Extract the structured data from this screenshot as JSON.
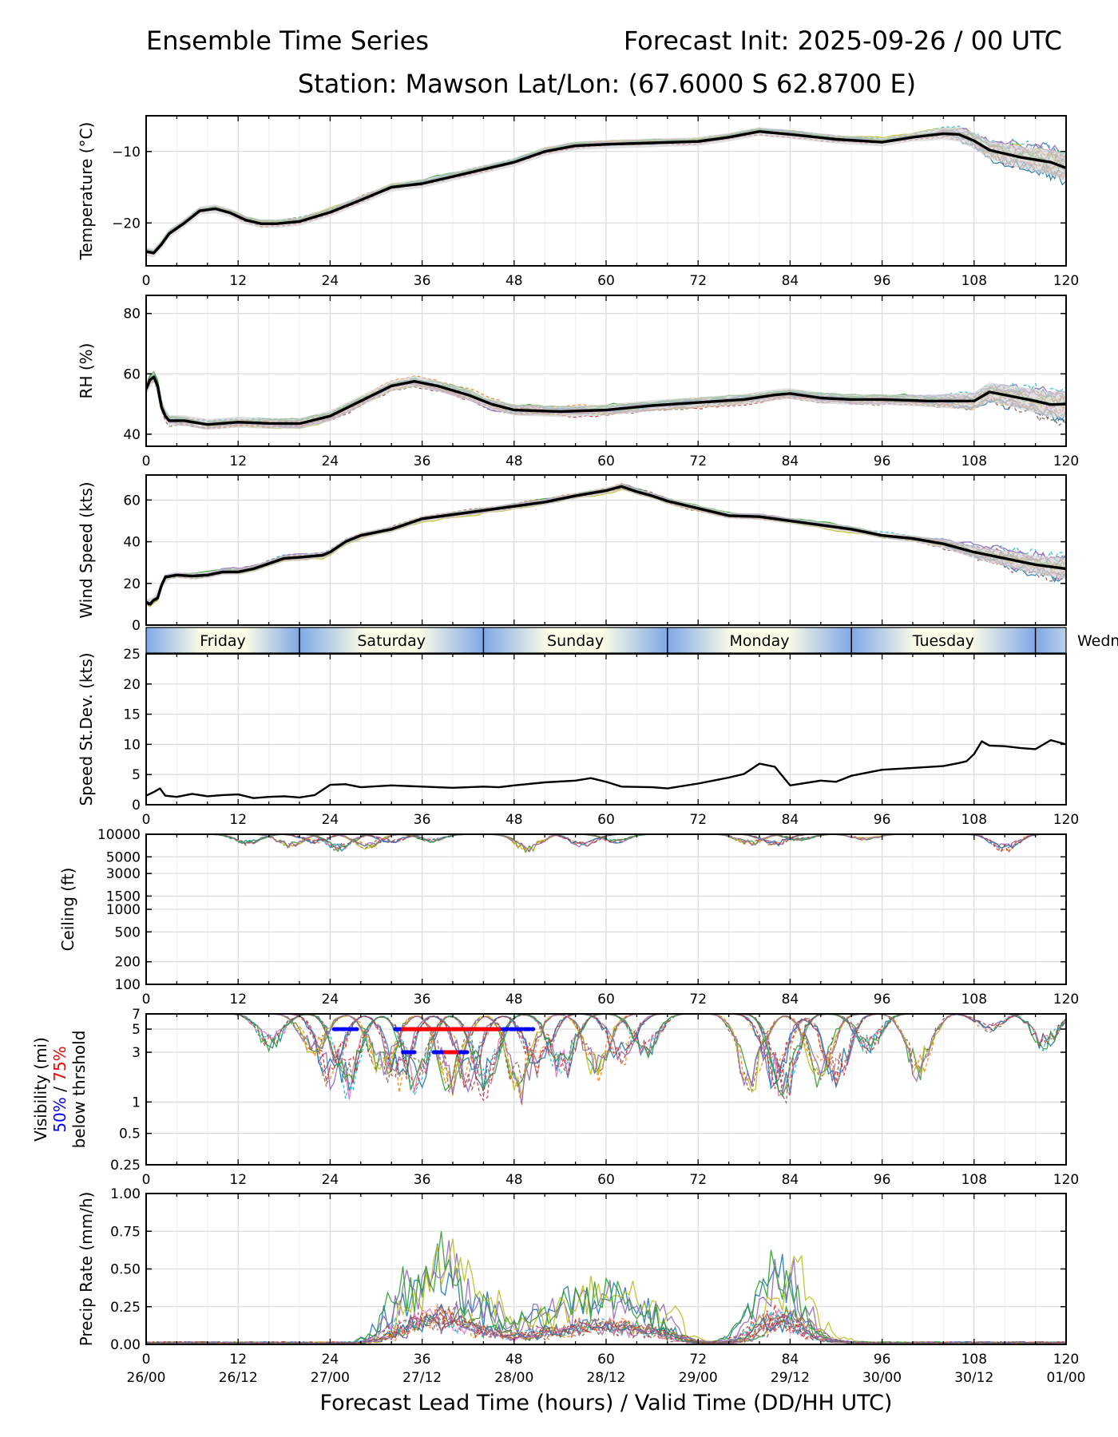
{
  "header": {
    "title": "Ensemble Time Series",
    "init": "Forecast Init: 2025-09-26 / 00 UTC",
    "station": "Station: Mawson    Lat/Lon: (67.6000 S 62.8700 E)"
  },
  "colors": {
    "members": [
      "#1f77b4",
      "#ff7f0e",
      "#2ca02c",
      "#d62728",
      "#9467bd",
      "#8c564b",
      "#e377c2",
      "#7f7f7f",
      "#bcbd22",
      "#17becf"
    ],
    "mean": "#000000",
    "spread": "#d3d3d3",
    "p50": "#0000ff",
    "p75": "#ff0000",
    "grid": "#dddddd"
  },
  "chart_data": {
    "type": "line",
    "x_label": "Forecast Lead Time (hours) / Valid Time (DD/HH UTC)",
    "x_ticks": [
      0,
      12,
      24,
      36,
      48,
      60,
      72,
      84,
      96,
      108,
      120
    ],
    "x_tick_labels": [
      "0",
      "12",
      "24",
      "36",
      "48",
      "60",
      "72",
      "84",
      "96",
      "108",
      "120"
    ],
    "valid_time_labels": [
      "26/00",
      "26/12",
      "27/00",
      "27/12",
      "28/00",
      "28/12",
      "29/00",
      "29/12",
      "30/00",
      "30/12",
      "01/00"
    ],
    "xlim": [
      0,
      120
    ],
    "day_bands": [
      {
        "label": "Friday",
        "start": 0,
        "end": 20
      },
      {
        "label": "Saturday",
        "start": 20,
        "end": 44
      },
      {
        "label": "Sunday",
        "start": 44,
        "end": 68
      },
      {
        "label": "Monday",
        "start": 68,
        "end": 92
      },
      {
        "label": "Tuesday",
        "start": 92,
        "end": 116
      },
      {
        "label": "Wedn",
        "start": 116,
        "end": 140
      }
    ],
    "panels": [
      {
        "id": "temperature",
        "ylabel": "Temperature (°C)",
        "scale": "linear",
        "ylim": [
          -26,
          -5
        ],
        "yticks": [
          -20,
          -10
        ],
        "ytick_labels": [
          "−20",
          "−10"
        ],
        "mean": [
          [
            0,
            -24
          ],
          [
            1,
            -24.2
          ],
          [
            2,
            -23
          ],
          [
            3,
            -21.5
          ],
          [
            5,
            -20
          ],
          [
            7,
            -18.3
          ],
          [
            9,
            -18
          ],
          [
            11,
            -18.6
          ],
          [
            13,
            -19.6
          ],
          [
            15,
            -20.1
          ],
          [
            17,
            -20.1
          ],
          [
            20,
            -19.8
          ],
          [
            24,
            -18.5
          ],
          [
            28,
            -16.8
          ],
          [
            32,
            -15
          ],
          [
            36,
            -14.5
          ],
          [
            40,
            -13.5
          ],
          [
            44,
            -12.5
          ],
          [
            48,
            -11.5
          ],
          [
            52,
            -10
          ],
          [
            56,
            -9.2
          ],
          [
            60,
            -9
          ],
          [
            66,
            -8.8
          ],
          [
            72,
            -8.6
          ],
          [
            76,
            -8
          ],
          [
            80,
            -7.2
          ],
          [
            84,
            -7.6
          ],
          [
            90,
            -8.3
          ],
          [
            96,
            -8.7
          ],
          [
            100,
            -8
          ],
          [
            104,
            -7.5
          ],
          [
            106,
            -7.6
          ],
          [
            108,
            -8.5
          ],
          [
            110,
            -9.8
          ],
          [
            114,
            -10.8
          ],
          [
            118,
            -11.5
          ],
          [
            120,
            -12.3
          ]
        ],
        "spread": 0.6,
        "members": 16,
        "member_jitter": 0.6,
        "tail_spread": 2.2
      },
      {
        "id": "rh",
        "ylabel": "RH (%)",
        "scale": "linear",
        "ylim": [
          36,
          86
        ],
        "yticks": [
          40,
          60,
          80
        ],
        "ytick_labels": [
          "40",
          "60",
          "80"
        ],
        "mean": [
          [
            0,
            55
          ],
          [
            0.5,
            58
          ],
          [
            1,
            59
          ],
          [
            1.5,
            56
          ],
          [
            2,
            49
          ],
          [
            2.5,
            46
          ],
          [
            3,
            44.5
          ],
          [
            5,
            44.5
          ],
          [
            8,
            43.2
          ],
          [
            12,
            44
          ],
          [
            16,
            43.6
          ],
          [
            20,
            43.5
          ],
          [
            24,
            46
          ],
          [
            28,
            51
          ],
          [
            32,
            56
          ],
          [
            35,
            57.5
          ],
          [
            38,
            56
          ],
          [
            42,
            53
          ],
          [
            45,
            50
          ],
          [
            48,
            48
          ],
          [
            54,
            47.5
          ],
          [
            60,
            48
          ],
          [
            66,
            49.5
          ],
          [
            72,
            50.5
          ],
          [
            78,
            51.5
          ],
          [
            82,
            53
          ],
          [
            84,
            53.5
          ],
          [
            88,
            52
          ],
          [
            92,
            51.5
          ],
          [
            96,
            51.5
          ],
          [
            102,
            51
          ],
          [
            108,
            51
          ],
          [
            110,
            54
          ],
          [
            112,
            53
          ],
          [
            114,
            52
          ],
          [
            116,
            51
          ],
          [
            118,
            49.8
          ],
          [
            120,
            50
          ]
        ],
        "spread": 1.8,
        "members": 16,
        "member_jitter": 2.2,
        "tail_spread": 4.5
      },
      {
        "id": "wind",
        "ylabel": "Wind Speed (kts)",
        "scale": "linear",
        "ylim": [
          0,
          72
        ],
        "yticks": [
          0,
          20,
          40,
          60
        ],
        "ytick_labels": [
          "0",
          "20",
          "40",
          "60"
        ],
        "mean": [
          [
            0,
            11
          ],
          [
            0.5,
            10
          ],
          [
            1,
            12
          ],
          [
            1.5,
            13
          ],
          [
            2,
            19
          ],
          [
            2.5,
            23
          ],
          [
            4,
            24
          ],
          [
            6,
            23.5
          ],
          [
            8,
            24
          ],
          [
            10,
            25.5
          ],
          [
            12,
            25.5
          ],
          [
            14,
            27
          ],
          [
            16,
            29.5
          ],
          [
            18,
            32
          ],
          [
            20,
            32.5
          ],
          [
            23,
            33.5
          ],
          [
            24,
            35
          ],
          [
            26,
            40
          ],
          [
            28,
            43
          ],
          [
            32,
            46
          ],
          [
            36,
            51
          ],
          [
            40,
            53
          ],
          [
            44,
            55
          ],
          [
            48,
            57
          ],
          [
            52,
            59
          ],
          [
            56,
            62
          ],
          [
            60,
            64.5
          ],
          [
            62,
            66.5
          ],
          [
            64,
            64
          ],
          [
            66,
            62
          ],
          [
            68,
            59.5
          ],
          [
            72,
            56
          ],
          [
            76,
            52.5
          ],
          [
            80,
            52
          ],
          [
            84,
            50
          ],
          [
            88,
            48
          ],
          [
            92,
            46
          ],
          [
            96,
            43
          ],
          [
            100,
            41.5
          ],
          [
            104,
            39
          ],
          [
            108,
            35
          ],
          [
            112,
            32
          ],
          [
            116,
            29
          ],
          [
            120,
            27
          ]
        ],
        "spread": 1.5,
        "members": 16,
        "member_jitter": 2.0,
        "tail_spread": 6
      },
      {
        "id": "stdev",
        "ylabel": "Speed St.Dev. (kts)",
        "scale": "linear",
        "ylim": [
          0,
          25
        ],
        "yticks": [
          0,
          5,
          10,
          15,
          20,
          25
        ],
        "ytick_labels": [
          "0",
          "5",
          "10",
          "15",
          "20",
          "25"
        ],
        "mean": [
          [
            0,
            1.5
          ],
          [
            1,
            2.1
          ],
          [
            1.8,
            2.7
          ],
          [
            2.5,
            1.5
          ],
          [
            4,
            1.3
          ],
          [
            6,
            1.8
          ],
          [
            8,
            1.4
          ],
          [
            10,
            1.6
          ],
          [
            12,
            1.7
          ],
          [
            14,
            1.1
          ],
          [
            16,
            1.3
          ],
          [
            18,
            1.4
          ],
          [
            20,
            1.2
          ],
          [
            22,
            1.6
          ],
          [
            24,
            3.3
          ],
          [
            26,
            3.4
          ],
          [
            28,
            2.9
          ],
          [
            32,
            3.2
          ],
          [
            36,
            3
          ],
          [
            40,
            2.8
          ],
          [
            44,
            3
          ],
          [
            46,
            2.9
          ],
          [
            48,
            3.2
          ],
          [
            52,
            3.7
          ],
          [
            56,
            4
          ],
          [
            58,
            4.4
          ],
          [
            60,
            3.8
          ],
          [
            62,
            3
          ],
          [
            66,
            2.9
          ],
          [
            68,
            2.7
          ],
          [
            72,
            3.5
          ],
          [
            76,
            4.5
          ],
          [
            78,
            5.1
          ],
          [
            80,
            6.8
          ],
          [
            82,
            6.3
          ],
          [
            84,
            3.2
          ],
          [
            86,
            3.6
          ],
          [
            88,
            4
          ],
          [
            90,
            3.8
          ],
          [
            92,
            4.8
          ],
          [
            96,
            5.8
          ],
          [
            100,
            6.1
          ],
          [
            104,
            6.4
          ],
          [
            106,
            6.9
          ],
          [
            107,
            7.2
          ],
          [
            108,
            8.4
          ],
          [
            109,
            10.5
          ],
          [
            110,
            9.8
          ],
          [
            112,
            9.7
          ],
          [
            114,
            9.4
          ],
          [
            116,
            9.2
          ],
          [
            118,
            10.7
          ],
          [
            120,
            10
          ]
        ],
        "spread": 0,
        "members": 0
      },
      {
        "id": "ceiling",
        "ylabel": "Ceiling (ft)",
        "scale": "log",
        "ylim": [
          100,
          10000
        ],
        "yticks": [
          100,
          200,
          500,
          1000,
          1500,
          3000,
          5000,
          10000
        ],
        "ytick_labels": [
          "100",
          "200",
          "500",
          "1000",
          "1500",
          "3000",
          "5000",
          "10000"
        ],
        "dips": [
          [
            14,
            7000
          ],
          [
            18,
            6500
          ],
          [
            22,
            7500
          ],
          [
            26,
            5800
          ],
          [
            28,
            6200
          ],
          [
            32,
            7500
          ],
          [
            38,
            7800
          ],
          [
            49,
            5600
          ],
          [
            57,
            6500
          ],
          [
            62,
            7500
          ],
          [
            78,
            7000
          ],
          [
            82,
            6800
          ],
          [
            86,
            8000
          ],
          [
            93,
            8200
          ],
          [
            112,
            5500
          ]
        ],
        "members": 16
      },
      {
        "id": "visibility",
        "ylabel": "Visibility (mi)",
        "ylabel_extra_50": "50%",
        "ylabel_extra_sep": " / ",
        "ylabel_extra_75": "75%",
        "ylabel_extra_3": "below thrshold",
        "scale": "log",
        "ylim": [
          0.25,
          7
        ],
        "yticks": [
          0.25,
          0.5,
          1,
          3,
          5,
          7
        ],
        "ytick_labels": [
          "0.25",
          "0.5",
          "1",
          "3",
          "5",
          "7"
        ],
        "dips": [
          [
            17,
            3
          ],
          [
            21,
            2.5
          ],
          [
            24,
            1.2
          ],
          [
            27,
            1.0
          ],
          [
            30,
            1.3
          ],
          [
            33,
            1.2
          ],
          [
            36,
            1.0
          ],
          [
            39,
            1.0
          ],
          [
            42,
            1.2
          ],
          [
            45,
            1.0
          ],
          [
            48,
            0.9
          ],
          [
            51,
            1.5
          ],
          [
            55,
            1.4
          ],
          [
            58,
            1.5
          ],
          [
            62,
            2.0
          ],
          [
            66,
            2.5
          ],
          [
            78,
            1.1
          ],
          [
            82,
            1.2
          ],
          [
            84,
            0.85
          ],
          [
            87,
            1.3
          ],
          [
            90,
            1.2
          ],
          [
            95,
            2.8
          ],
          [
            100,
            1.5
          ],
          [
            110,
            4.5
          ],
          [
            118,
            3
          ]
        ],
        "members": 16,
        "p50_segments": [
          [
            24.5,
            27.5,
            5
          ],
          [
            32.5,
            50.5,
            5
          ],
          [
            33.5,
            35,
            3
          ],
          [
            37.5,
            42,
            3
          ]
        ],
        "p75_segments": [
          [
            33.5,
            46,
            5
          ],
          [
            39,
            40.5,
            3
          ]
        ]
      },
      {
        "id": "precip",
        "ylabel": "Precip Rate (mm/h)",
        "scale": "linear",
        "ylim": [
          0,
          1
        ],
        "yticks": [
          0,
          0.25,
          0.5,
          0.75,
          1.0
        ],
        "ytick_labels": [
          "0.00",
          "0.25",
          "0.50",
          "0.75",
          "1.00"
        ],
        "peaks": [
          [
            34,
            0.45
          ],
          [
            38,
            0.4
          ],
          [
            40,
            0.47
          ],
          [
            45,
            0.32
          ],
          [
            52,
            0.3
          ],
          [
            57,
            0.42
          ],
          [
            61,
            0.3
          ],
          [
            63,
            0.22
          ],
          [
            67,
            0.26
          ],
          [
            81,
            0.37
          ],
          [
            84,
            0.55
          ],
          [
            88,
            0.05
          ]
        ],
        "members": 16
      }
    ]
  }
}
